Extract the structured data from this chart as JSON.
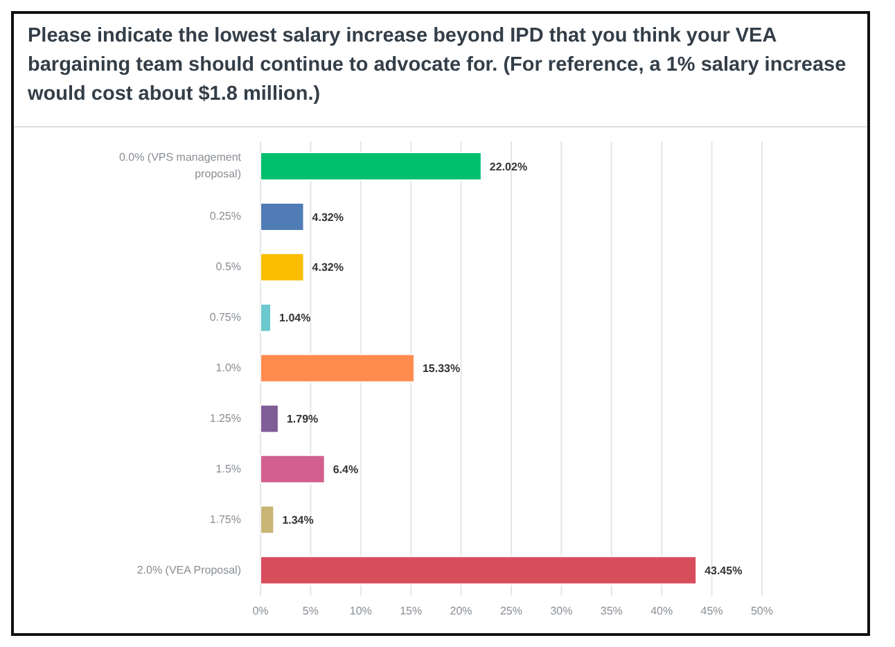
{
  "chart_data": {
    "type": "bar",
    "orientation": "horizontal",
    "title": "Please indicate the lowest salary increase beyond IPD that you think your VEA bargaining team should continue to advocate for. (For reference, a 1% salary increase would cost about $1.8 million.)",
    "categories": [
      "0.0% (VPS management proposal)",
      "0.25%",
      "0.5%",
      "0.75%",
      "1.0%",
      "1.25%",
      "1.5%",
      "1.75%",
      "2.0% (VEA Proposal)"
    ],
    "values": [
      22.02,
      4.32,
      4.32,
      1.04,
      15.33,
      1.79,
      6.4,
      1.34,
      43.45
    ],
    "value_labels": [
      "22.02%",
      "4.32%",
      "4.32%",
      "1.04%",
      "15.33%",
      "1.79%",
      "6.4%",
      "1.34%",
      "43.45%"
    ],
    "colors": [
      "#00bf6f",
      "#507cb6",
      "#f9be00",
      "#6bc8cd",
      "#ff8b4f",
      "#7f5d96",
      "#d25f90",
      "#c9b576",
      "#d74d5c"
    ],
    "xlim": [
      0,
      50
    ],
    "xticks": [
      {
        "value": 0,
        "label": "0%"
      },
      {
        "value": 5,
        "label": "5%"
      },
      {
        "value": 10,
        "label": "10%"
      },
      {
        "value": 15,
        "label": "15%"
      },
      {
        "value": 20,
        "label": "20%"
      },
      {
        "value": 25,
        "label": "25%"
      },
      {
        "value": 30,
        "label": "30%"
      },
      {
        "value": 35,
        "label": "35%"
      },
      {
        "value": 40,
        "label": "40%"
      },
      {
        "value": 45,
        "label": "45%"
      },
      {
        "value": 50,
        "label": "50%"
      }
    ],
    "grid": "x"
  }
}
